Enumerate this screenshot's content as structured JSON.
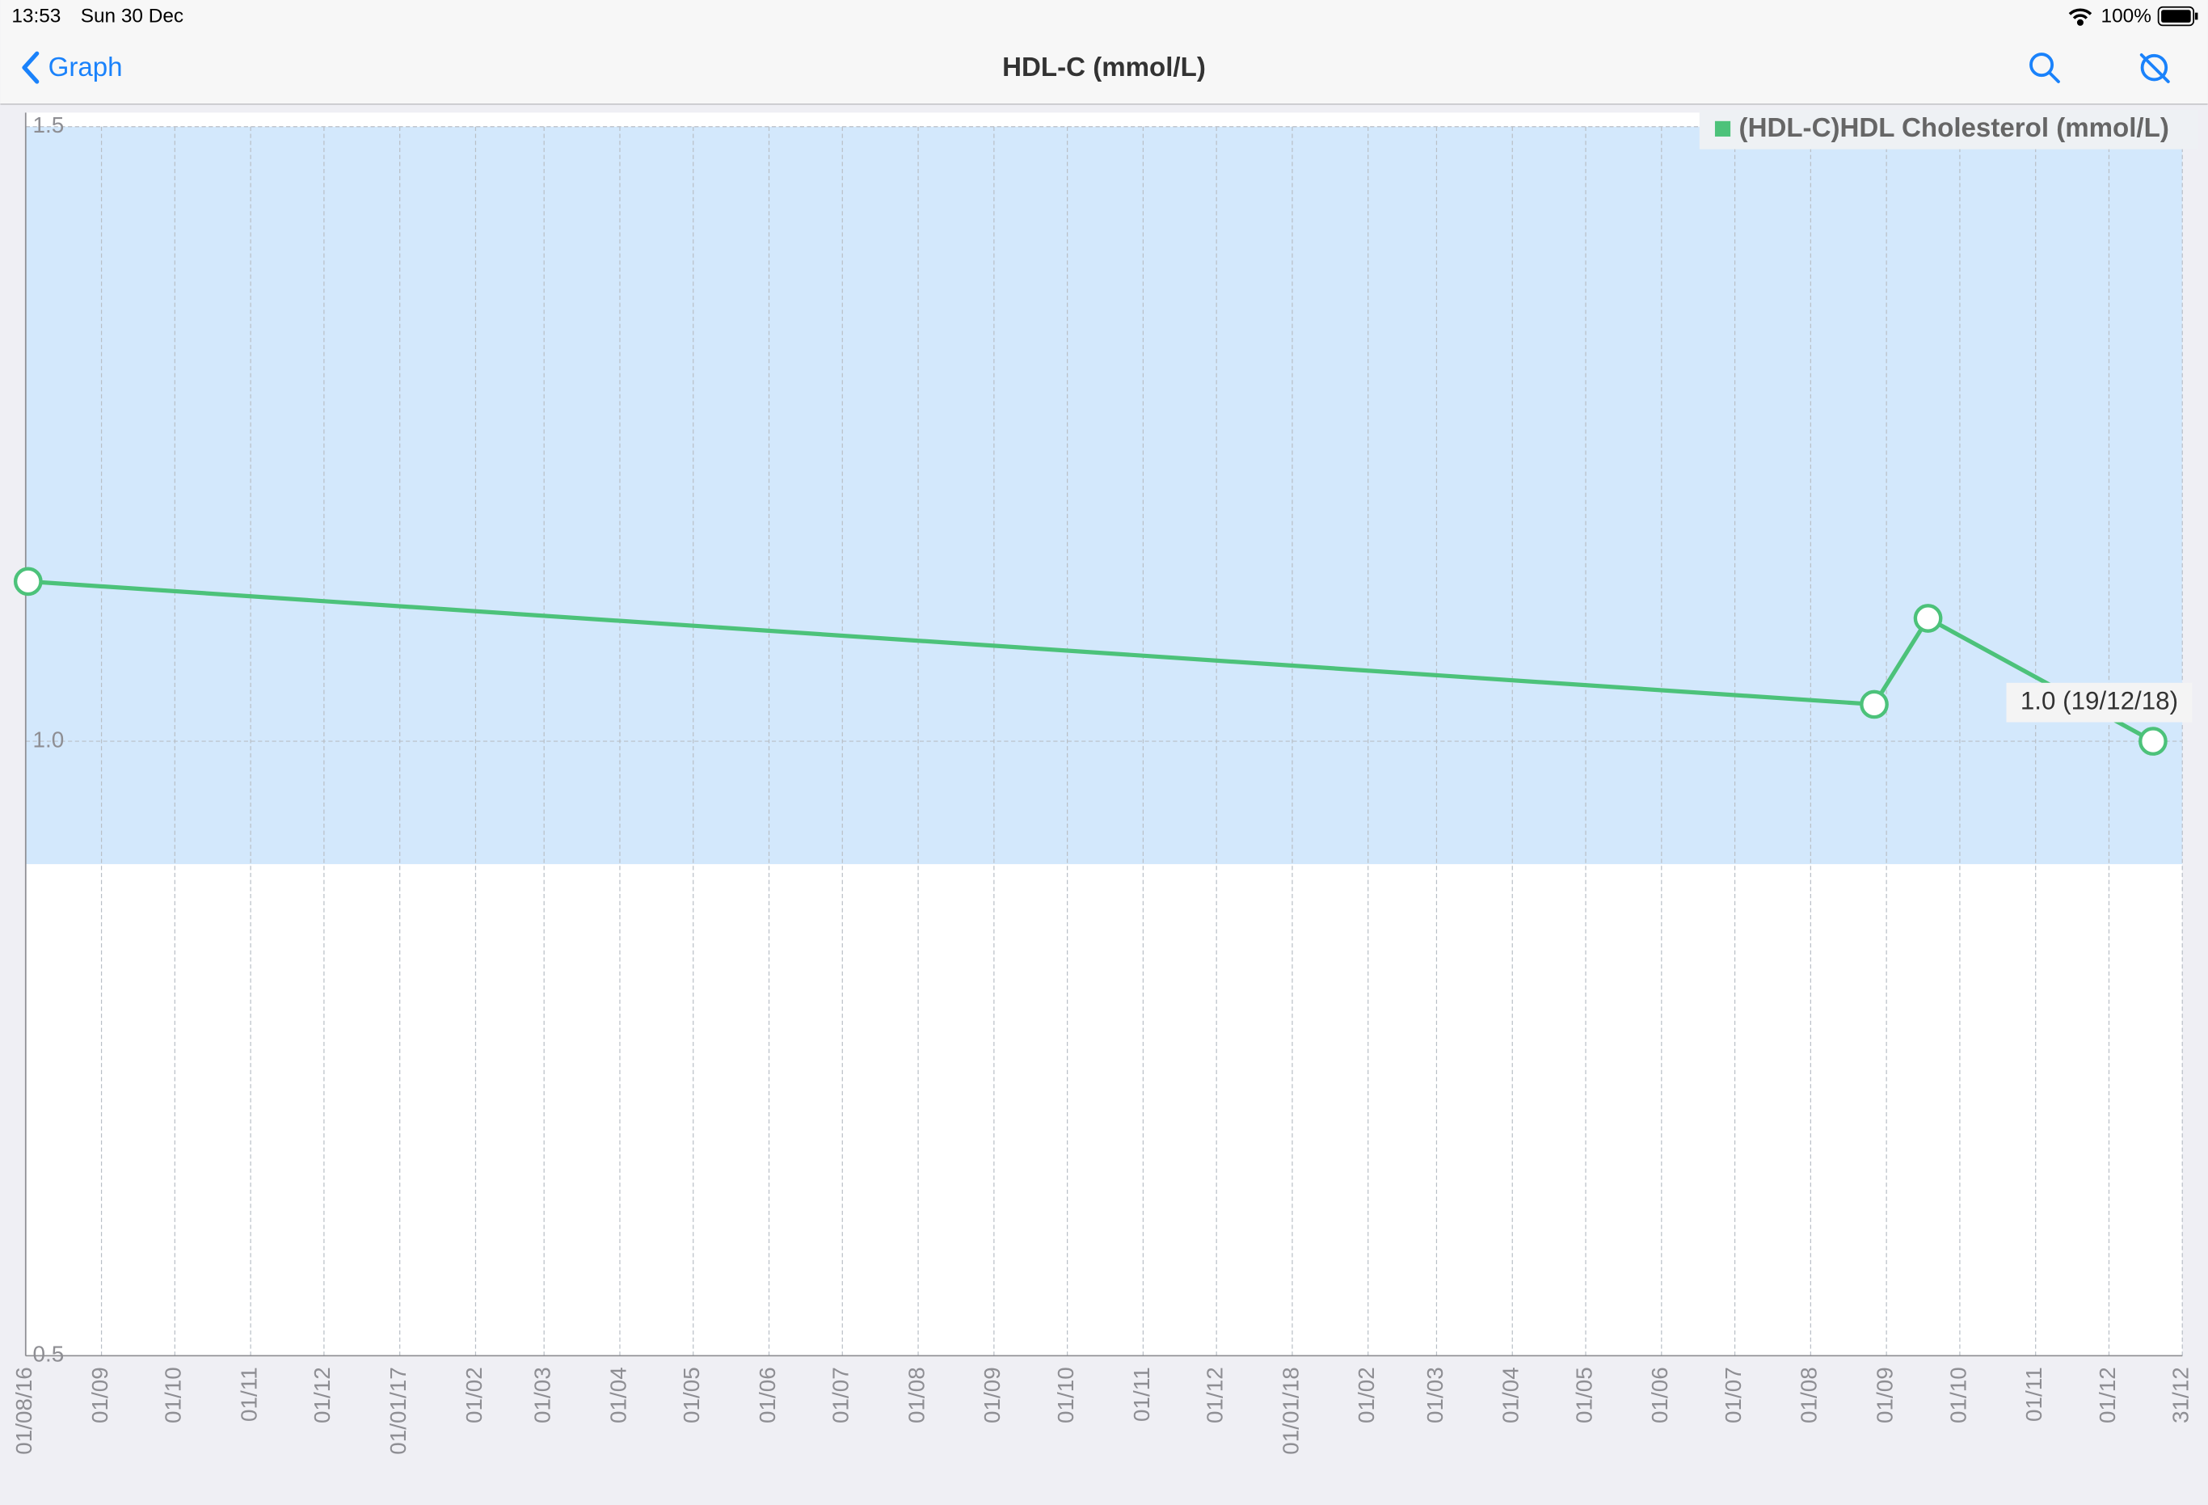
{
  "status_bar": {
    "time": "13:53",
    "date": "Sun 30 Dec",
    "battery": "100%"
  },
  "nav": {
    "back": "Graph",
    "title": "HDL-C (mmol/L)"
  },
  "chart_data": {
    "type": "line",
    "x": [
      "2016-08-02",
      "2018-08-27",
      "2018-09-18",
      "2018-12-19"
    ],
    "series": [
      {
        "name": "(HDL-C)HDL Cholesterol  (mmol/L)",
        "color": "#4cc27a",
        "values": [
          1.13,
          1.03,
          1.1,
          1.0
        ]
      }
    ],
    "annotation": "1.0  (19/12/18)",
    "reference_range": [
      0.9,
      1.5
    ],
    "reference_color": "#d3e8fc",
    "ylim": [
      0.5,
      1.5
    ],
    "yticks": [
      0.5,
      {
        "value": 1,
        "label": "1.0"
      },
      1.5
    ],
    "xlim": [
      "2016-08-01",
      "2018-12-31"
    ],
    "xticks": [
      {
        "value": "2016-08-01",
        "label": "01/08/16"
      },
      {
        "value": "2016-09-01",
        "label": "01/09"
      },
      {
        "value": "2016-10-01",
        "label": "01/10"
      },
      {
        "value": "2016-11-01",
        "label": "01/11"
      },
      {
        "value": "2016-12-01",
        "label": "01/12"
      },
      {
        "value": "2017-01-01",
        "label": "01/01/17"
      },
      {
        "value": "2017-02-01",
        "label": "01/02"
      },
      {
        "value": "2017-03-01",
        "label": "01/03"
      },
      {
        "value": "2017-04-01",
        "label": "01/04"
      },
      {
        "value": "2017-05-01",
        "label": "01/05"
      },
      {
        "value": "2017-06-01",
        "label": "01/06"
      },
      {
        "value": "2017-07-01",
        "label": "01/07"
      },
      {
        "value": "2017-08-01",
        "label": "01/08"
      },
      {
        "value": "2017-09-01",
        "label": "01/09"
      },
      {
        "value": "2017-10-01",
        "label": "01/10"
      },
      {
        "value": "2017-11-01",
        "label": "01/11"
      },
      {
        "value": "2017-12-01",
        "label": "01/12"
      },
      {
        "value": "2018-01-01",
        "label": "01/01/18"
      },
      {
        "value": "2018-02-01",
        "label": "01/02"
      },
      {
        "value": "2018-03-01",
        "label": "01/03"
      },
      {
        "value": "2018-04-01",
        "label": "01/04"
      },
      {
        "value": "2018-05-01",
        "label": "01/05"
      },
      {
        "value": "2018-06-01",
        "label": "01/06"
      },
      {
        "value": "2018-07-01",
        "label": "01/07"
      },
      {
        "value": "2018-08-01",
        "label": "01/08"
      },
      {
        "value": "2018-09-01",
        "label": "01/09"
      },
      {
        "value": "2018-10-01",
        "label": "01/10"
      },
      {
        "value": "2018-11-01",
        "label": "01/11"
      },
      {
        "value": "2018-12-01",
        "label": "01/12"
      },
      {
        "value": "2018-12-31",
        "label": "31/12"
      }
    ],
    "grid": true
  }
}
